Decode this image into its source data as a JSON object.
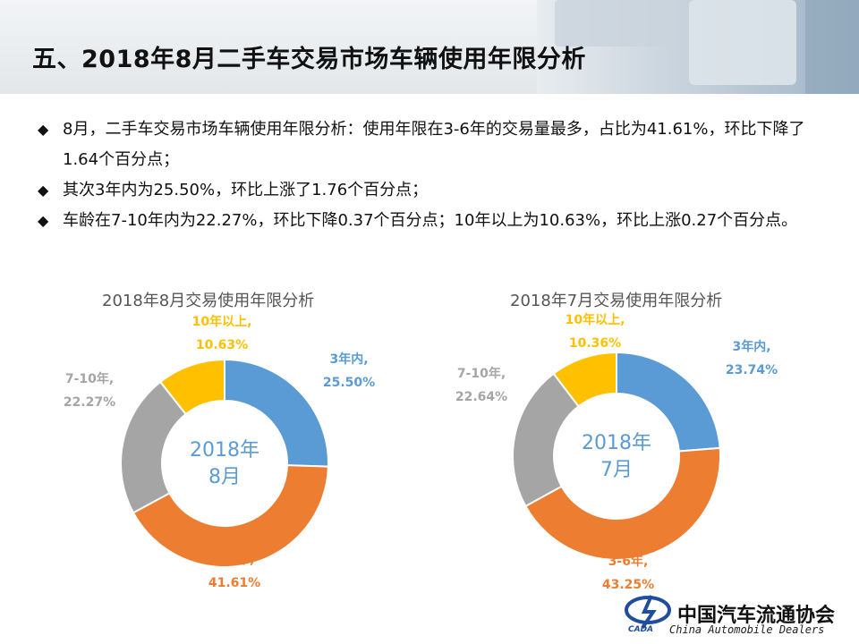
{
  "title": "五、2018年8月二手车交易市场车辆使用年限分析",
  "bullets": [
    "8月，二手车交易市场车辆使用年限分析：使用年限在3-6年的交易量最多，占比为41.61%，环比下降了1.64个百分点；",
    "其次3年内为25.50%，环比上涨了1.76个百分点；",
    "车龄在7-10年内为22.27%，环比下降0.37个百分点；10年以上为10.63%，环比上涨0.27个百分点。"
  ],
  "bullet_mark": "◆",
  "colors": {
    "3年内": "#5b9bd5",
    "3-6年": "#ed7d31",
    "7-10年": "#a5a5a5",
    "10年以上": "#ffc000",
    "center_text": "#5b9bd5"
  },
  "logo": {
    "cn": "中国汽车流通协会",
    "en": "China Automobile Dealers",
    "mark": "CADA"
  },
  "chart_data": [
    {
      "type": "pie",
      "title": "2018年8月交易使用年限分析",
      "center_label": [
        "2018年",
        "8月"
      ],
      "categories": [
        "3年内",
        "3-6年",
        "7-10年",
        "10年以上"
      ],
      "values": [
        25.5,
        41.61,
        22.27,
        10.63
      ],
      "data_labels": [
        [
          "3年内,",
          "25.50%"
        ],
        [
          "3-6年,",
          "41.61%"
        ],
        [
          "7-10年,",
          "22.27%"
        ],
        [
          "10年以上,",
          "10.63%"
        ]
      ]
    },
    {
      "type": "pie",
      "title": "2018年7月交易使用年限分析",
      "center_label": [
        "2018年",
        "7月"
      ],
      "categories": [
        "3年内",
        "3-6年",
        "7-10年",
        "10年以上"
      ],
      "values": [
        23.74,
        43.25,
        22.64,
        10.36
      ],
      "data_labels": [
        [
          "3年内,",
          "23.74%"
        ],
        [
          "3-6年,",
          "43.25%"
        ],
        [
          "7-10年,",
          "22.64%"
        ],
        [
          "10年以上,",
          "10.36%"
        ]
      ]
    }
  ]
}
